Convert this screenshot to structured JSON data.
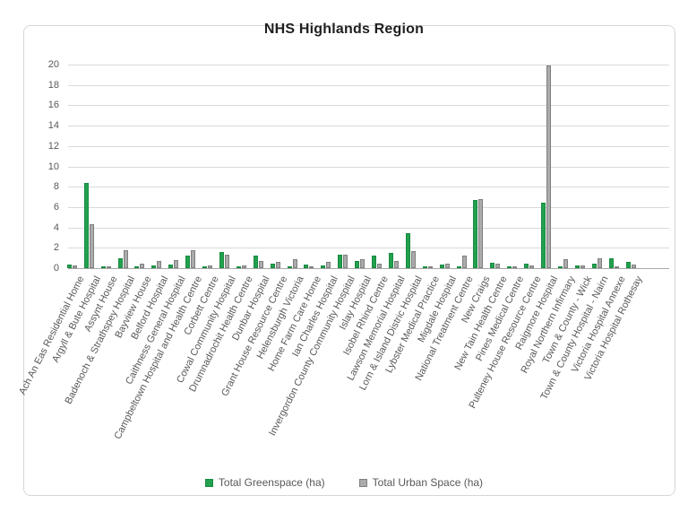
{
  "chart_data": {
    "type": "bar",
    "title": "NHS Highlands Region",
    "categories": [
      "Ach An Eas Residential Home",
      "Argyll & Bute Hospital",
      "Assynt House",
      "Badenoch & Strathspey Hospital",
      "Bayview House",
      "Belford Hospital",
      "Caithness General Hospital",
      "Campbeltown Hospital and Health Centre",
      "Corbett Centre",
      "Cowal Community Hospital",
      "Drumnadrochit Health Centre",
      "Dunbar Hospital",
      "Grant House Resource Centre",
      "Helensburgh Victoria",
      "Home Farm Care Home",
      "Ian Charles Hospital",
      "Invergordon County Community Hospital",
      "Islay Hospital",
      "Isobel Rhind Centre",
      "Lawson Memorial Hospital",
      "Lorn & Island Distric Hospital",
      "Lybster Medical Practice",
      "Migdale Hospital",
      "National Treatment Centre",
      "New Craigs",
      "New Tain Health Centre",
      "Pines Medical Centre",
      "Pulteney House Resource Centre",
      "Raigmore Hospital",
      "Royal Northern Infirmary",
      "Town & County - Wick",
      "Town & County Hospital - Nairn",
      "Victoria Hospital Annexe",
      "Victoria Hospital Rothesay"
    ],
    "series": [
      {
        "name": "Total Greenspace (ha)",
        "color": "#22a14e",
        "values": [
          0.35,
          8.4,
          0.2,
          1.0,
          0.15,
          0.3,
          0.35,
          1.2,
          0.15,
          1.6,
          0.2,
          1.2,
          0.4,
          0.15,
          0.35,
          0.25,
          1.3,
          0.75,
          1.2,
          1.5,
          3.4,
          0.15,
          0.35,
          0.15,
          6.7,
          0.5,
          0.15,
          0.45,
          6.4,
          0.2,
          0.3,
          0.4,
          1.0,
          0.6
        ]
      },
      {
        "name": "Total Urban Space (ha)",
        "color": "#ababab",
        "values": [
          0.3,
          4.3,
          0.2,
          1.8,
          0.4,
          0.75,
          0.8,
          1.8,
          0.25,
          1.3,
          0.25,
          0.7,
          0.6,
          0.9,
          0.2,
          0.6,
          1.3,
          0.9,
          0.4,
          0.75,
          1.65,
          0.15,
          0.45,
          1.25,
          6.8,
          0.45,
          0.2,
          0.3,
          19.9,
          0.85,
          0.25,
          1.0,
          0.2,
          0.35
        ]
      }
    ],
    "ylim": [
      0,
      20
    ],
    "y_ticks": [
      "0",
      "2",
      "4",
      "6",
      "8",
      "10",
      "12",
      "14",
      "16",
      "18",
      "20"
    ],
    "grid": "horizontal",
    "legend_position": "bottom",
    "colors": {
      "greenspace": "#22a14e",
      "urban": "#ababab",
      "gridline": "#d9d9d9",
      "axis_text": "#595959",
      "title_text": "#1f1f1f"
    }
  }
}
